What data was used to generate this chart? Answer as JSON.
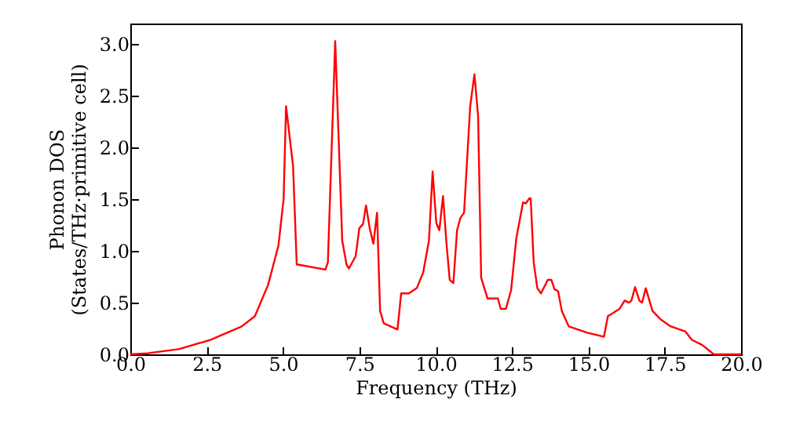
{
  "chart_data": {
    "type": "line",
    "xlabel": "Frequency (THz)",
    "ylabel": "Phonon DOS\n(States/THz·primitive cell)",
    "x": [
      0,
      0.56,
      1.59,
      2.62,
      3.65,
      4.08,
      4.51,
      4.85,
      5.02,
      5.1,
      5.33,
      5.45,
      6.39,
      6.47,
      6.71,
      6.94,
      7.08,
      7.16,
      7.38,
      7.5,
      7.62,
      7.72,
      7.84,
      7.96,
      8.08,
      8.18,
      8.3,
      8.75,
      8.87,
      9.12,
      9.38,
      9.59,
      9.78,
      9.9,
      10.02,
      10.12,
      10.24,
      10.36,
      10.46,
      10.58,
      10.7,
      10.81,
      10.93,
      11.13,
      11.27,
      11.39,
      11.49,
      11.7,
      12.04,
      12.13,
      12.3,
      12.47,
      12.64,
      12.86,
      12.95,
      13.07,
      13.11,
      13.21,
      13.33,
      13.45,
      13.67,
      13.79,
      13.89,
      14.01,
      14.13,
      14.36,
      14.96,
      15.51,
      15.64,
      15.81,
      16.02,
      16.19,
      16.33,
      16.41,
      16.53,
      16.67,
      16.76,
      16.88,
      17.1,
      17.36,
      17.7,
      18.18,
      18.39,
      18.73,
      19.11,
      20.0
    ],
    "series": [
      {
        "color": "#ff0000",
        "values": [
          0,
          0.01,
          0.05,
          0.14,
          0.27,
          0.37,
          0.67,
          1.05,
          1.5,
          2.4,
          1.82,
          0.87,
          0.82,
          0.89,
          3.03,
          1.1,
          0.87,
          0.83,
          0.95,
          1.22,
          1.26,
          1.44,
          1.22,
          1.07,
          1.37,
          0.42,
          0.3,
          0.24,
          0.59,
          0.59,
          0.64,
          0.79,
          1.1,
          1.77,
          1.27,
          1.2,
          1.53,
          1.05,
          0.72,
          0.69,
          1.2,
          1.32,
          1.37,
          2.4,
          2.71,
          2.3,
          0.74,
          0.54,
          0.54,
          0.44,
          0.44,
          0.62,
          1.12,
          1.47,
          1.46,
          1.51,
          1.51,
          0.89,
          0.64,
          0.59,
          0.72,
          0.72,
          0.63,
          0.61,
          0.42,
          0.27,
          0.21,
          0.17,
          0.37,
          0.4,
          0.44,
          0.52,
          0.5,
          0.52,
          0.65,
          0.52,
          0.5,
          0.64,
          0.42,
          0.34,
          0.27,
          0.22,
          0.14,
          0.09,
          0,
          0
        ]
      }
    ],
    "xlim": [
      0,
      20
    ],
    "xticks": [
      {
        "value": 0,
        "label": "0.0"
      },
      {
        "value": 2.5,
        "label": "2.5"
      },
      {
        "value": 5,
        "label": "5.0"
      },
      {
        "value": 7.5,
        "label": "7.5"
      },
      {
        "value": 10,
        "label": "10.0"
      },
      {
        "value": 12.5,
        "label": "12.5"
      },
      {
        "value": 15,
        "label": "15.0"
      },
      {
        "value": 17.5,
        "label": "17.5"
      },
      {
        "value": 20,
        "label": "20.0"
      }
    ],
    "ylim": [
      0,
      3.2
    ],
    "yticks": [
      {
        "value": 0,
        "label": "0.0"
      },
      {
        "value": 0.5,
        "label": "0.5"
      },
      {
        "value": 1,
        "label": "1.0"
      },
      {
        "value": 1.5,
        "label": "1.5"
      },
      {
        "value": 2,
        "label": "2.0"
      },
      {
        "value": 2.5,
        "label": "2.5"
      },
      {
        "value": 3,
        "label": "3.0"
      }
    ],
    "grid": false,
    "marker": "none",
    "line_style": "solid"
  }
}
